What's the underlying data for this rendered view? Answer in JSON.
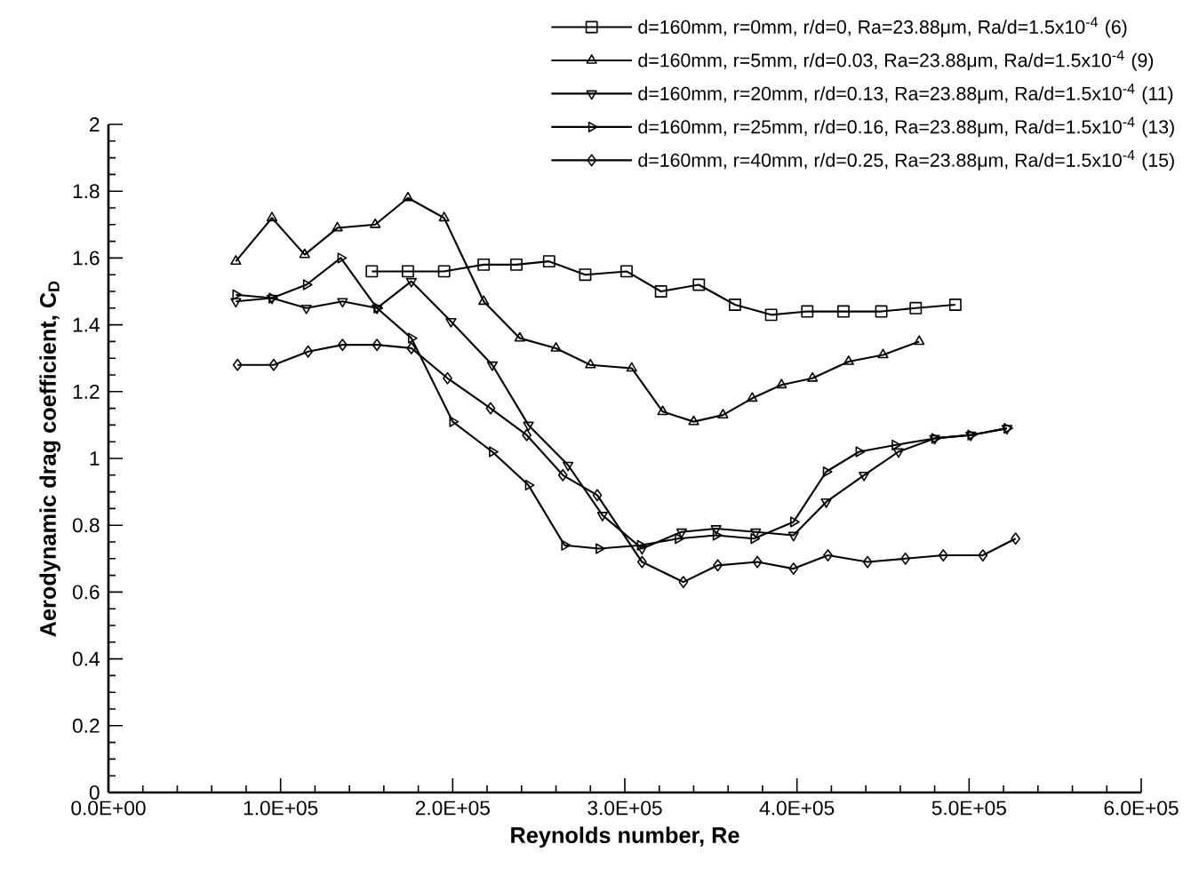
{
  "chart_data": {
    "type": "line",
    "xlabel": "Reynolds number, Re",
    "ylabel": "Aerodynamic drag coefficient, C$_{D}$",
    "xlim": [
      0,
      600000
    ],
    "ylim": [
      0,
      2
    ],
    "xticks": [
      {
        "value": 0,
        "label": "0.0E+00"
      },
      {
        "value": 100000,
        "label": "1.0E+05"
      },
      {
        "value": 200000,
        "label": "2.0E+05"
      },
      {
        "value": 300000,
        "label": "3.0E+05"
      },
      {
        "value": 400000,
        "label": "4.0E+05"
      },
      {
        "value": 500000,
        "label": "5.0E+05"
      },
      {
        "value": 600000,
        "label": "6.0E+05"
      }
    ],
    "yticks": [
      0,
      0.2,
      0.4,
      0.6,
      0.8,
      1,
      1.2,
      1.4,
      1.6,
      1.8,
      2
    ],
    "legend": "top right",
    "series": [
      {
        "name": "d=160mm, r=0mm, r/d=0, Ra=23.88μm, Ra/d=1.5x10$^{-4}$ (6)",
        "color": "#000000",
        "marker": "square",
        "x": [
          153000,
          174000,
          195000,
          218000,
          237000,
          256000,
          277000,
          301000,
          321000,
          343000,
          364000,
          385000,
          406000,
          427000,
          449000,
          469000,
          492000
        ],
        "values": [
          1.56,
          1.56,
          1.56,
          1.58,
          1.58,
          1.59,
          1.55,
          1.56,
          1.5,
          1.52,
          1.46,
          1.43,
          1.44,
          1.44,
          1.44,
          1.45,
          1.46
        ]
      },
      {
        "name": "d=160mm, r=5mm, r/d=0.03, Ra=23.88μm, Ra/d=1.5x10$^{-4}$ (9)",
        "color": "#000000",
        "marker": "triangle",
        "x": [
          74000,
          95000,
          114000,
          133000,
          155000,
          174000,
          195000,
          218000,
          239000,
          260000,
          280000,
          304000,
          322000,
          340000,
          357000,
          374000,
          391000,
          409000,
          430000,
          450000,
          471000
        ],
        "values": [
          1.59,
          1.72,
          1.61,
          1.69,
          1.7,
          1.78,
          1.72,
          1.47,
          1.36,
          1.33,
          1.28,
          1.27,
          1.14,
          1.11,
          1.13,
          1.18,
          1.22,
          1.24,
          1.29,
          1.31,
          1.35
        ]
      },
      {
        "name": "d=160mm, r=20mm, r/d=0.13, Ra=23.88μm, Ra/d=1.5x10$^{-4}$ (11)",
        "color": "#000000",
        "marker": "triangle-down",
        "x": [
          74000,
          95000,
          115000,
          136000,
          156000,
          176000,
          199000,
          223000,
          244000,
          267000,
          287000,
          310000,
          333000,
          353000,
          376000,
          398000,
          417000,
          439000,
          459000,
          480000,
          501000,
          522000
        ],
        "values": [
          1.47,
          1.48,
          1.45,
          1.47,
          1.45,
          1.53,
          1.41,
          1.28,
          1.1,
          0.98,
          0.83,
          0.73,
          0.78,
          0.79,
          0.78,
          0.77,
          0.87,
          0.95,
          1.02,
          1.06,
          1.07,
          1.09
        ]
      },
      {
        "name": "d=160mm, r=25mm, r/d=0.16, Ra=23.88μm, Ra/d=1.5x10$^{-4}$ (13)",
        "color": "#000000",
        "marker": "triangle-right",
        "x": [
          74000,
          95000,
          115000,
          135000,
          156000,
          176000,
          200000,
          223000,
          244000,
          265000,
          285000,
          309000,
          331000,
          353000,
          375000,
          398000,
          417000,
          436000,
          457000,
          480000,
          501000,
          522000
        ],
        "values": [
          1.49,
          1.48,
          1.52,
          1.6,
          1.45,
          1.36,
          1.11,
          1.02,
          0.92,
          0.74,
          0.73,
          0.74,
          0.76,
          0.77,
          0.76,
          0.81,
          0.96,
          1.02,
          1.04,
          1.06,
          1.07,
          1.09
        ]
      },
      {
        "name": "d=160mm, r=40mm, r/d=0.25, Ra=23.88μm, Ra/d=1.5x10$^{-4}$ (15)",
        "color": "#000000",
        "marker": "diamond",
        "x": [
          75000,
          96000,
          116000,
          136000,
          156000,
          176000,
          197000,
          222000,
          243000,
          264000,
          284000,
          310000,
          334000,
          354000,
          377000,
          398000,
          418000,
          441000,
          463000,
          485000,
          508000,
          527000
        ],
        "values": [
          1.28,
          1.28,
          1.32,
          1.34,
          1.34,
          1.33,
          1.24,
          1.15,
          1.07,
          0.95,
          0.89,
          0.69,
          0.63,
          0.68,
          0.69,
          0.67,
          0.71,
          0.69,
          0.7,
          0.71,
          0.71,
          0.76
        ]
      }
    ]
  }
}
